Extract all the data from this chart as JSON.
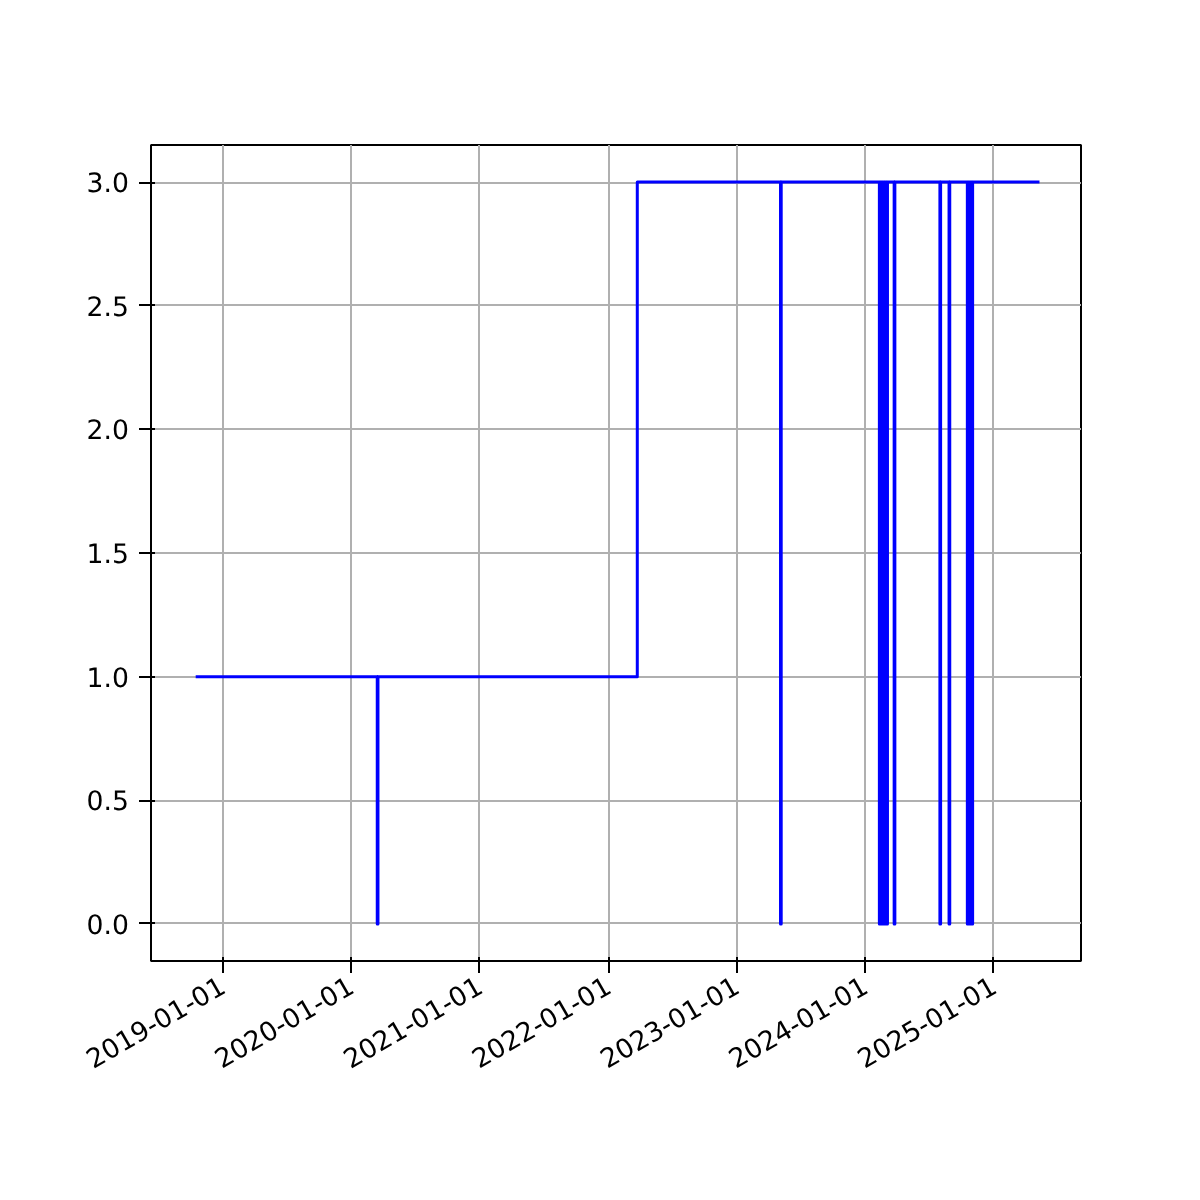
{
  "chart_data": {
    "type": "step",
    "x": [
      "2018-10-17",
      "2020-03-16",
      "2020-03-18",
      "2022-03-25",
      "2023-05-06",
      "2023-05-08",
      "2024-02-11",
      "2024-02-14",
      "2024-02-17",
      "2024-02-20",
      "2024-02-24",
      "2024-02-27",
      "2024-03-02",
      "2024-03-05",
      "2024-03-24",
      "2024-03-26",
      "2024-08-01",
      "2024-08-03",
      "2024-08-27",
      "2024-08-29",
      "2024-10-18",
      "2024-10-21",
      "2024-10-24",
      "2024-10-27",
      "2024-10-30",
      "2024-11-02",
      "2025-05-11"
    ],
    "series": [
      {
        "color": "#0000ff",
        "values": [
          1,
          0,
          1,
          3,
          0,
          3,
          0,
          3,
          0,
          3,
          0,
          3,
          0,
          3,
          0,
          3,
          0,
          3,
          0,
          3,
          0,
          3,
          0,
          3,
          0,
          3,
          3
        ]
      }
    ],
    "xlim": [
      "2018-06-12",
      "2025-09-06"
    ],
    "xticks": [
      "2019-01-01",
      "2020-01-01",
      "2021-01-01",
      "2022-01-01",
      "2023-01-01",
      "2024-01-01",
      "2025-01-01"
    ],
    "ylim": [
      -0.15,
      3.15
    ],
    "yticks": [
      {
        "value": 0,
        "label": "0.0"
      },
      {
        "value": 0.5,
        "label": "0.5"
      },
      {
        "value": 1,
        "label": "1.0"
      },
      {
        "value": 1.5,
        "label": "1.5"
      },
      {
        "value": 2,
        "label": "2.0"
      },
      {
        "value": 2.5,
        "label": "2.5"
      },
      {
        "value": 3,
        "label": "3.0"
      }
    ],
    "grid": true
  }
}
